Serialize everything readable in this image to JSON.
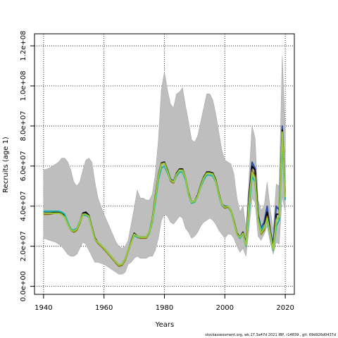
{
  "footer": "stockassessment.org, wk.27.3a47d 2021 IBP, r14839 , git: 69d926d0437d",
  "chart_data": {
    "type": "line",
    "xlabel": "Years",
    "ylabel": "Recruits (age 1)",
    "xlim": [
      1937,
      2023
    ],
    "ylim": [
      -4000000,
      126000000
    ],
    "x_ticks": [
      1940,
      1960,
      1980,
      2000,
      2020
    ],
    "y_ticks": [
      {
        "value": 0,
        "label": "0.0e+00"
      },
      {
        "value": 20000000,
        "label": "2.0e+07"
      },
      {
        "value": 40000000,
        "label": "4.0e+07"
      },
      {
        "value": 60000000,
        "label": "6.0e+07"
      },
      {
        "value": 80000000,
        "label": "8.0e+07"
      },
      {
        "value": 100000000,
        "label": "1.0e+08"
      },
      {
        "value": 120000000,
        "label": "1.2e+08"
      }
    ],
    "grid": true,
    "grid_style": "dotted",
    "band_color": "#bebebe",
    "confidence_band": {
      "x": [
        1940,
        1942,
        1944,
        1945,
        1946,
        1947,
        1948,
        1949,
        1950,
        1951,
        1952,
        1953,
        1954,
        1955,
        1956,
        1957,
        1958,
        1960,
        1962,
        1964,
        1965,
        1966,
        1967,
        1968,
        1969,
        1970,
        1971,
        1972,
        1973,
        1974,
        1975,
        1976,
        1977,
        1978,
        1979,
        1980,
        1981,
        1982,
        1983,
        1984,
        1985,
        1986,
        1987,
        1988,
        1989,
        1990,
        1991,
        1992,
        1993,
        1994,
        1995,
        1996,
        1997,
        1998,
        1999,
        2000,
        2001,
        2002,
        2003,
        2004,
        2005,
        2006,
        2007,
        2008,
        2009,
        2010,
        2011,
        2012,
        2013,
        2014,
        2015,
        2016,
        2017,
        2018,
        2019,
        2020
      ],
      "upper": [
        58000000,
        59000000,
        61000000,
        62000000,
        64000000,
        64000000,
        62000000,
        58000000,
        52000000,
        50000000,
        52000000,
        58000000,
        63000000,
        64000000,
        62000000,
        52000000,
        44000000,
        36000000,
        29000000,
        22000000,
        20000000,
        19000000,
        20000000,
        23000000,
        31000000,
        39000000,
        48000000,
        44000000,
        44000000,
        43000000,
        43000000,
        46000000,
        56000000,
        73000000,
        98000000,
        107000000,
        98000000,
        91000000,
        89000000,
        96000000,
        97000000,
        99000000,
        90000000,
        82000000,
        73000000,
        72000000,
        75000000,
        82000000,
        89000000,
        96000000,
        96000000,
        93000000,
        86000000,
        77000000,
        68000000,
        63000000,
        62000000,
        61000000,
        56000000,
        44000000,
        37000000,
        40000000,
        29000000,
        54000000,
        80000000,
        74000000,
        43000000,
        38000000,
        40000000,
        52000000,
        39000000,
        28000000,
        51000000,
        50000000,
        115000000,
        78000000
      ],
      "lower": [
        24000000,
        23000000,
        22000000,
        21000000,
        20000000,
        18000000,
        16000000,
        15000000,
        15000000,
        16000000,
        19000000,
        22000000,
        21000000,
        18000000,
        15000000,
        12000000,
        12000000,
        11000000,
        9000000,
        7000000,
        6000000,
        6000000,
        7000000,
        11000000,
        12000000,
        14000000,
        15000000,
        14000000,
        14000000,
        14000000,
        15000000,
        15000000,
        18000000,
        24000000,
        33000000,
        36000000,
        35000000,
        32000000,
        31000000,
        33000000,
        35000000,
        34000000,
        29000000,
        27000000,
        24000000,
        25000000,
        27000000,
        30000000,
        32000000,
        33000000,
        34000000,
        33000000,
        31000000,
        28000000,
        26000000,
        24000000,
        26000000,
        26000000,
        24000000,
        20000000,
        17000000,
        19000000,
        15000000,
        28000000,
        44000000,
        42000000,
        25000000,
        23000000,
        26000000,
        30000000,
        22000000,
        16000000,
        22000000,
        21000000,
        45000000,
        37000000
      ]
    },
    "series": [
      {
        "color": "#2e4da5",
        "x": [
          1940,
          1942,
          1944,
          1945,
          1946,
          1947,
          1948,
          1949,
          1950,
          1951,
          1952,
          1953,
          1954,
          1955,
          1956,
          1957,
          1958,
          1960,
          1962,
          1964,
          1965,
          1966,
          1967,
          1968,
          1969,
          1970,
          1971,
          1972,
          1973,
          1974,
          1975,
          1976,
          1977,
          1978,
          1979,
          1980,
          1981,
          1982,
          1983,
          1984,
          1985,
          1986,
          1987,
          1988,
          1989,
          1990,
          1991,
          1992,
          1993,
          1994,
          1995,
          1996,
          1997,
          1998,
          1999,
          2000,
          2001,
          2002,
          2003,
          2004,
          2005,
          2006,
          2007,
          2008,
          2009,
          2010,
          2011,
          2012,
          2013,
          2014,
          2015,
          2016,
          2017,
          2018,
          2019,
          2020
        ],
        "y": [
          37000000,
          37000000,
          37000000,
          37000000,
          36500000,
          35000000,
          31000000,
          28000000,
          27500000,
          28500000,
          32000000,
          36500000,
          36500000,
          35000000,
          29000000,
          23500000,
          22000000,
          19000000,
          15500000,
          12000000,
          10500000,
          11000000,
          13500000,
          18000000,
          22000000,
          26000000,
          25000000,
          24500000,
          24500000,
          24500000,
          27000000,
          33000000,
          44000000,
          55000000,
          61000000,
          61500000,
          58000000,
          53500000,
          52500000,
          56000000,
          58500000,
          58500000,
          54000000,
          46000000,
          42000000,
          42500000,
          45000000,
          50000000,
          54000000,
          57000000,
          57000000,
          56500000,
          53000000,
          46000000,
          41000000,
          40000000,
          40000000,
          38000000,
          32000000,
          26000000,
          24500000,
          27000000,
          21000000,
          45000000,
          62000000,
          59000000,
          36000000,
          29000000,
          32000000,
          40000000,
          28000000,
          21000000,
          40000000,
          38000000,
          80000000,
          46000000
        ]
      },
      {
        "color": "#000000",
        "x": [
          1940,
          1942,
          1944,
          1945,
          1946,
          1947,
          1948,
          1949,
          1950,
          1951,
          1952,
          1953,
          1954,
          1955,
          1956,
          1957,
          1958,
          1960,
          1962,
          1964,
          1965,
          1966,
          1967,
          1968,
          1969,
          1970,
          1971,
          1972,
          1973,
          1974,
          1975,
          1976,
          1977,
          1978,
          1979,
          1980,
          1981,
          1982,
          1983,
          1984,
          1985,
          1986,
          1987,
          1988,
          1989,
          1990,
          1991,
          1992,
          1993,
          1994,
          1995,
          1996,
          1997,
          1998,
          1999,
          2000,
          2001,
          2002,
          2003,
          2004,
          2005,
          2006,
          2007,
          2008,
          2009,
          2010,
          2011,
          2012,
          2013,
          2014,
          2015,
          2016,
          2017,
          2018,
          2019,
          2020
        ],
        "y": [
          36500000,
          36500000,
          37000000,
          37000000,
          36500000,
          35000000,
          31500000,
          28500000,
          27500000,
          28500000,
          32000000,
          36500000,
          37000000,
          35500000,
          29500000,
          24000000,
          22000000,
          19000000,
          15500000,
          12000000,
          10500000,
          11000000,
          13500000,
          18000000,
          22500000,
          26500000,
          25000000,
          24500000,
          24500000,
          24500000,
          27000000,
          33500000,
          45000000,
          55500000,
          61500000,
          62000000,
          58000000,
          53000000,
          52000000,
          56500000,
          58500000,
          58500000,
          54000000,
          46500000,
          42000000,
          42500000,
          45500000,
          50500000,
          54500000,
          57000000,
          57000000,
          56500000,
          53000000,
          46500000,
          41000000,
          39500000,
          40000000,
          38000000,
          32500000,
          26500000,
          24500000,
          27000000,
          21000000,
          44000000,
          60000000,
          58000000,
          35000000,
          27000000,
          30000000,
          37000000,
          27000000,
          19000000,
          36000000,
          36000000,
          78000000,
          45000000
        ]
      },
      {
        "color": "#8b6914",
        "x": [
          1940,
          1942,
          1944,
          1945,
          1946,
          1947,
          1948,
          1949,
          1950,
          1951,
          1952,
          1953,
          1954,
          1955,
          1956,
          1957,
          1958,
          1960,
          1962,
          1964,
          1965,
          1966,
          1967,
          1968,
          1969,
          1970,
          1971,
          1972,
          1973,
          1974,
          1975,
          1976,
          1977,
          1978,
          1979,
          1980,
          1981,
          1982,
          1983,
          1984,
          1985,
          1986,
          1987,
          1988,
          1989,
          1990,
          1991,
          1992,
          1993,
          1994,
          1995,
          1996,
          1997,
          1998,
          1999,
          2000,
          2001,
          2002,
          2003,
          2004,
          2005,
          2006,
          2007,
          2008,
          2009,
          2010,
          2011,
          2012,
          2013,
          2014,
          2015,
          2016,
          2017,
          2018,
          2019,
          2020
        ],
        "y": [
          36000000,
          36000000,
          36500000,
          36500000,
          36000000,
          34500000,
          31000000,
          28000000,
          27000000,
          28000000,
          31500000,
          36000000,
          36000000,
          35000000,
          29000000,
          23500000,
          21500000,
          18500000,
          15000000,
          11500000,
          10000000,
          10500000,
          13000000,
          17500000,
          22000000,
          26000000,
          24500000,
          24000000,
          24000000,
          24000000,
          26500000,
          33000000,
          44500000,
          55000000,
          61000000,
          61500000,
          57500000,
          52500000,
          51500000,
          56000000,
          58000000,
          58000000,
          53500000,
          46000000,
          41500000,
          42000000,
          45000000,
          50000000,
          54000000,
          56500000,
          56500000,
          56000000,
          52500000,
          46000000,
          40500000,
          39000000,
          39500000,
          37500000,
          32000000,
          26000000,
          24000000,
          26500000,
          20000000,
          41000000,
          58000000,
          55000000,
          33000000,
          26000000,
          28000000,
          35000000,
          26000000,
          18500000,
          34000000,
          34000000,
          76000000,
          44000000
        ]
      },
      {
        "color": "#20b2aa",
        "x": [
          1940,
          1942,
          1944,
          1945,
          1946,
          1947,
          1948,
          1949,
          1950,
          1951,
          1952,
          1953,
          1954,
          1955,
          1956,
          1957,
          1958,
          1960,
          1962,
          1964,
          1965,
          1966,
          1967,
          1968,
          1969,
          1970,
          1971,
          1972,
          1973,
          1974,
          1975,
          1976,
          1977,
          1978,
          1979,
          1980,
          1981,
          1982,
          1983,
          1984,
          1985,
          1986,
          1987,
          1988,
          1989,
          1990,
          1991,
          1992,
          1993,
          1994,
          1995,
          1996,
          1997,
          1998,
          1999,
          2000,
          2001,
          2002,
          2003,
          2004,
          2005,
          2006,
          2007,
          2008,
          2009,
          2010,
          2011,
          2012,
          2013,
          2014,
          2015,
          2016,
          2017,
          2018,
          2019,
          2020
        ],
        "y": [
          37500000,
          37500000,
          37500000,
          37500000,
          37000000,
          36000000,
          32000000,
          28500000,
          28000000,
          29000000,
          32500000,
          35500000,
          35500000,
          34500000,
          29000000,
          23500000,
          22000000,
          19000000,
          15500000,
          12000000,
          10500000,
          11000000,
          13500000,
          18000000,
          22000000,
          25500000,
          24500000,
          24500000,
          24500000,
          24500000,
          26500000,
          32000000,
          42000000,
          53000000,
          59000000,
          60000000,
          56500000,
          53000000,
          52000000,
          55000000,
          57000000,
          57000000,
          53000000,
          45500000,
          41500000,
          42000000,
          45000000,
          49500000,
          53000000,
          55500000,
          55500000,
          55000000,
          52000000,
          45500000,
          40500000,
          39500000,
          40000000,
          37500000,
          32000000,
          26000000,
          24000000,
          26000000,
          20000000,
          38000000,
          55000000,
          52000000,
          34000000,
          28000000,
          30000000,
          33000000,
          26000000,
          18000000,
          30000000,
          33000000,
          72000000,
          43000000
        ]
      },
      {
        "color": "#9acd32",
        "x": [
          1940,
          1942,
          1944,
          1945,
          1946,
          1947,
          1948,
          1949,
          1950,
          1951,
          1952,
          1953,
          1954,
          1955,
          1956,
          1957,
          1958,
          1960,
          1962,
          1964,
          1965,
          1966,
          1967,
          1968,
          1969,
          1970,
          1971,
          1972,
          1973,
          1974,
          1975,
          1976,
          1977,
          1978,
          1979,
          1980,
          1981,
          1982,
          1983,
          1984,
          1985,
          1986,
          1987,
          1988,
          1989,
          1990,
          1991,
          1992,
          1993,
          1994,
          1995,
          1996,
          1997,
          1998,
          1999,
          2000,
          2001,
          2002,
          2003,
          2004,
          2005,
          2006,
          2007,
          2008,
          2009,
          2010,
          2011,
          2012,
          2013,
          2014,
          2015,
          2016,
          2017,
          2018,
          2019,
          2020
        ],
        "y": [
          36500000,
          36500000,
          36500000,
          36500000,
          36000000,
          34500000,
          31000000,
          28000000,
          27500000,
          28500000,
          32000000,
          36000000,
          36000000,
          35000000,
          29000000,
          23500000,
          22000000,
          19000000,
          15500000,
          12000000,
          10500000,
          11000000,
          13500000,
          18000000,
          22000000,
          26000000,
          25000000,
          24500000,
          24500000,
          24500000,
          27000000,
          33000000,
          44000000,
          55000000,
          61000000,
          61500000,
          57500000,
          53000000,
          52000000,
          56000000,
          58000000,
          58000000,
          54000000,
          46000000,
          42000000,
          42500000,
          45000000,
          50000000,
          54000000,
          56500000,
          56500000,
          56000000,
          52500000,
          46000000,
          41000000,
          39500000,
          40000000,
          38000000,
          32000000,
          26000000,
          24500000,
          26500000,
          20500000,
          42000000,
          57000000,
          54000000,
          33000000,
          26500000,
          29000000,
          34000000,
          26500000,
          18500000,
          33000000,
          35000000,
          77000000,
          44500000
        ]
      }
    ]
  }
}
